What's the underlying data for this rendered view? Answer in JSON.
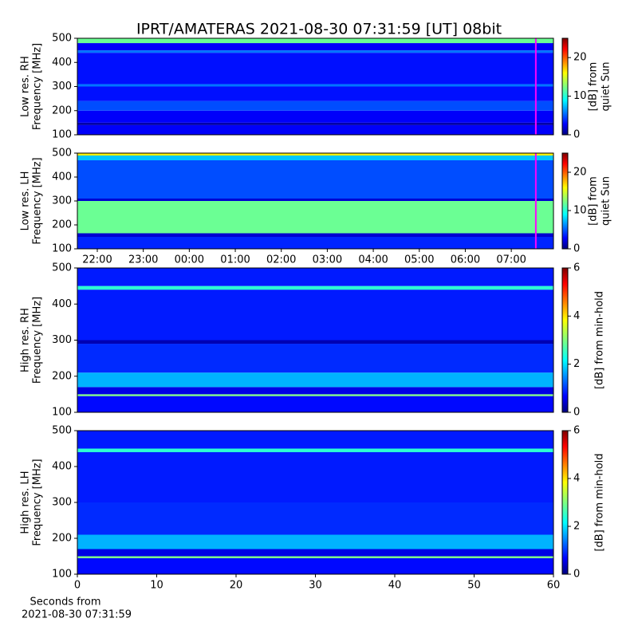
{
  "title": "IPRT/AMATERAS 2021-08-30 07:31:59 [UT]   08bit",
  "chart_data": [
    {
      "type": "heatmap",
      "ylabel": [
        "Low res. RH",
        "Frequency [MHz]"
      ],
      "ylim": [
        100,
        500
      ],
      "yticks": [
        100,
        200,
        300,
        400,
        500
      ],
      "xlim": [
        "21:34",
        "07:55"
      ],
      "marker": "07:31:59",
      "marker_color": "#ff00ff",
      "colorbar": {
        "label": [
          "[dB] from",
          "quiet Sun"
        ],
        "lim": [
          0,
          25
        ],
        "ticks": [
          0,
          10,
          20
        ]
      },
      "bands": [
        {
          "from": 100,
          "to": 140,
          "level": 3
        },
        {
          "from": 140,
          "to": 150,
          "level": 1
        },
        {
          "from": 150,
          "to": 200,
          "level": 3
        },
        {
          "from": 200,
          "to": 240,
          "level": 5
        },
        {
          "from": 240,
          "to": 300,
          "level": 3.5
        },
        {
          "from": 300,
          "to": 310,
          "level": 6
        },
        {
          "from": 310,
          "to": 440,
          "level": 3.5
        },
        {
          "from": 440,
          "to": 450,
          "level": 6
        },
        {
          "from": 450,
          "to": 480,
          "level": 3
        },
        {
          "from": 480,
          "to": 500,
          "level": 12
        }
      ]
    },
    {
      "type": "heatmap",
      "ylabel": [
        "Low res. LH",
        "Frequency [MHz]"
      ],
      "ylim": [
        100,
        500
      ],
      "yticks": [
        100,
        200,
        300,
        400,
        500
      ],
      "xlim": [
        "21:34",
        "07:55"
      ],
      "xticks": [
        "22:00",
        "23:00",
        "00:00",
        "01:00",
        "02:00",
        "03:00",
        "04:00",
        "05:00",
        "06:00",
        "07:00"
      ],
      "marker": "07:31:59",
      "marker_color": "#ff00ff",
      "colorbar": {
        "label": [
          "[dB] from",
          "quiet Sun"
        ],
        "lim": [
          0,
          25
        ],
        "ticks": [
          0,
          10,
          20
        ]
      },
      "bands": [
        {
          "from": 100,
          "to": 150,
          "level": 4
        },
        {
          "from": 150,
          "to": 165,
          "level": 2
        },
        {
          "from": 165,
          "to": 300,
          "level": 12
        },
        {
          "from": 300,
          "to": 310,
          "level": 2
        },
        {
          "from": 310,
          "to": 470,
          "level": 5
        },
        {
          "from": 470,
          "to": 490,
          "level": 8
        },
        {
          "from": 490,
          "to": 500,
          "level": 16
        }
      ]
    },
    {
      "type": "heatmap",
      "ylabel": [
        "High res. RH",
        "Frequency [MHz]"
      ],
      "ylim": [
        100,
        500
      ],
      "yticks": [
        100,
        200,
        300,
        400,
        500
      ],
      "xlim": [
        0,
        60
      ],
      "colorbar": {
        "label": [
          "[dB] from min-hold"
        ],
        "lim": [
          0,
          6
        ],
        "ticks": [
          0,
          2,
          4,
          6
        ]
      },
      "bands": [
        {
          "from": 100,
          "to": 145,
          "level": 0.8
        },
        {
          "from": 145,
          "to": 150,
          "level": 3
        },
        {
          "from": 150,
          "to": 170,
          "level": 0.6
        },
        {
          "from": 170,
          "to": 210,
          "level": 1.8
        },
        {
          "from": 210,
          "to": 290,
          "level": 1
        },
        {
          "from": 290,
          "to": 300,
          "level": 0.3
        },
        {
          "from": 300,
          "to": 440,
          "level": 0.9
        },
        {
          "from": 440,
          "to": 450,
          "level": 2.5
        },
        {
          "from": 450,
          "to": 500,
          "level": 0.9
        }
      ]
    },
    {
      "type": "heatmap",
      "ylabel": [
        "High res. LH",
        "Frequency [MHz]"
      ],
      "ylim": [
        100,
        500
      ],
      "yticks": [
        100,
        200,
        300,
        400,
        500
      ],
      "xlim": [
        0,
        60
      ],
      "xticks": [
        0,
        10,
        20,
        30,
        40,
        50,
        60
      ],
      "xlabel": [
        "Seconds from",
        "2021-08-30 07:31:59"
      ],
      "colorbar": {
        "label": [
          "[dB] from min-hold"
        ],
        "lim": [
          0,
          6
        ],
        "ticks": [
          0,
          2,
          4,
          6
        ]
      },
      "bands": [
        {
          "from": 100,
          "to": 145,
          "level": 0.8
        },
        {
          "from": 145,
          "to": 150,
          "level": 3
        },
        {
          "from": 150,
          "to": 170,
          "level": 0.6
        },
        {
          "from": 170,
          "to": 210,
          "level": 1.8
        },
        {
          "from": 210,
          "to": 300,
          "level": 1
        },
        {
          "from": 300,
          "to": 440,
          "level": 0.9
        },
        {
          "from": 440,
          "to": 450,
          "level": 2.5
        },
        {
          "from": 450,
          "to": 500,
          "level": 0.9
        }
      ]
    }
  ]
}
